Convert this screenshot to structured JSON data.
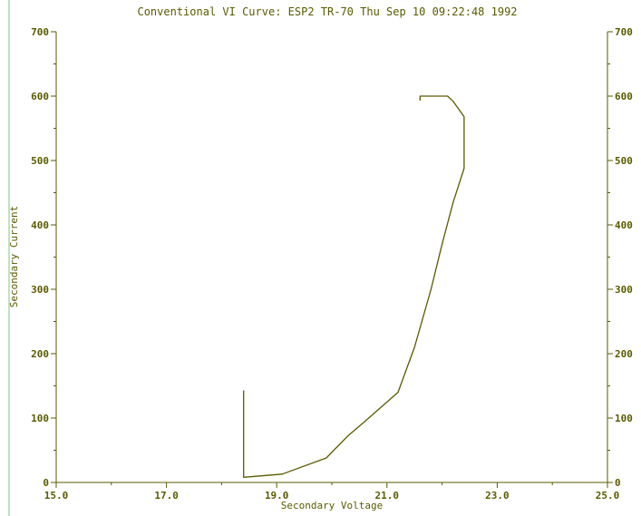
{
  "chart_data": {
    "type": "line",
    "title": "Conventional VI Curve: ESP2 TR-70 Thu Sep 10 09:22:48 1992",
    "xlabel": "Secondary Voltage",
    "ylabel": "Secondary Current",
    "xlim": [
      15.0,
      25.0
    ],
    "ylim": [
      0,
      700
    ],
    "x_ticks": [
      "15.0",
      "17.0",
      "19.0",
      "21.0",
      "23.0",
      "25.0"
    ],
    "y_ticks": [
      "0",
      "100",
      "200",
      "300",
      "400",
      "500",
      "600",
      "700"
    ],
    "y_ticks_right": [
      "0",
      "100",
      "200",
      "300",
      "400",
      "500",
      "600",
      "700"
    ],
    "grid": false,
    "series": [
      {
        "color": "#5a5a00",
        "points": [
          [
            18.4,
            143
          ],
          [
            18.4,
            8
          ],
          [
            19.1,
            13
          ],
          [
            19.9,
            38
          ],
          [
            20.3,
            73
          ],
          [
            20.6,
            95
          ],
          [
            21.2,
            140
          ],
          [
            21.5,
            210
          ],
          [
            21.8,
            300
          ],
          [
            22.0,
            370
          ],
          [
            22.2,
            435
          ],
          [
            22.4,
            488
          ],
          [
            22.4,
            568
          ],
          [
            22.2,
            592
          ],
          [
            22.1,
            600
          ],
          [
            21.6,
            600
          ],
          [
            21.6,
            593
          ]
        ]
      }
    ],
    "colors": {
      "axis": "#5a5a00",
      "text": "#5a5a00",
      "left_rule": "#7ec87e",
      "background": "#ffffff"
    }
  }
}
